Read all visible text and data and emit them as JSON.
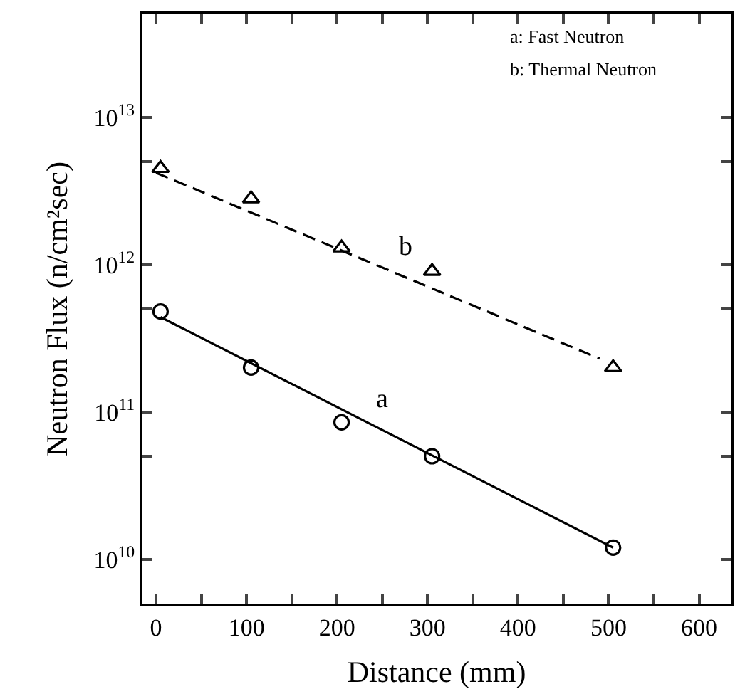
{
  "chart_data": {
    "type": "scatter",
    "xlabel": "Distance (mm)",
    "ylabel": "Neutron Flux (n/cm²sec)",
    "log": "y",
    "grid": false,
    "xlim": [
      -15,
      635
    ],
    "ylim": [
      5000000000.0,
      50000000000000.0
    ],
    "xticks": [
      0,
      {
        "value": 50,
        "label": null
      },
      100,
      {
        "value": 150,
        "label": null
      },
      200,
      {
        "value": 250,
        "label": null
      },
      300,
      {
        "value": 350,
        "label": null
      },
      400,
      {
        "value": 450,
        "label": null
      },
      500,
      {
        "value": 550,
        "label": null
      },
      600
    ],
    "yticks": [
      {
        "value": 10000000000.0,
        "label": "10$^{10}$"
      },
      {
        "value": 50000000000.0,
        "label": null
      },
      {
        "value": 100000000000.0,
        "label": "10$^{11}$"
      },
      {
        "value": 500000000000.0,
        "label": null
      },
      {
        "value": 1000000000000.0,
        "label": "10$^{12}$"
      },
      {
        "value": 5000000000000.0,
        "label": null
      },
      {
        "value": 10000000000000.0,
        "label": "10$^{13}$"
      }
    ],
    "series": [
      {
        "marker": "triangle",
        "color": "#000000",
        "x": [
          5,
          105,
          205,
          305,
          505
        ],
        "values": [
          4500000000000.0,
          2800000000000.0,
          1300000000000.0,
          900000000000.0,
          200000000000.0
        ]
      },
      {
        "marker": "circle",
        "color": "#000000",
        "x": [
          5,
          105,
          205,
          305,
          505
        ],
        "values": [
          480000000000.0,
          200000000000.0,
          85000000000.0,
          50000000000.0,
          12000000000.0
        ]
      },
      {
        "type": "line",
        "line_style": "dashed",
        "color": "#000000",
        "x": [
          0,
          490
        ],
        "values": [
          4200000000000.0,
          230000000000.0
        ]
      },
      {
        "type": "line",
        "line_style": "solid",
        "color": "#000000",
        "x": [
          5,
          505
        ],
        "values": [
          440000000000.0,
          12000000000.0
        ]
      }
    ],
    "annotations": [
      {
        "text": "b",
        "x": 265,
        "y": 870000000000.0
      },
      {
        "text": "a",
        "x": 240,
        "y": 81000000000.0
      },
      "a: Fast Neutron",
      "b: Thermal Neutron"
    ]
  }
}
